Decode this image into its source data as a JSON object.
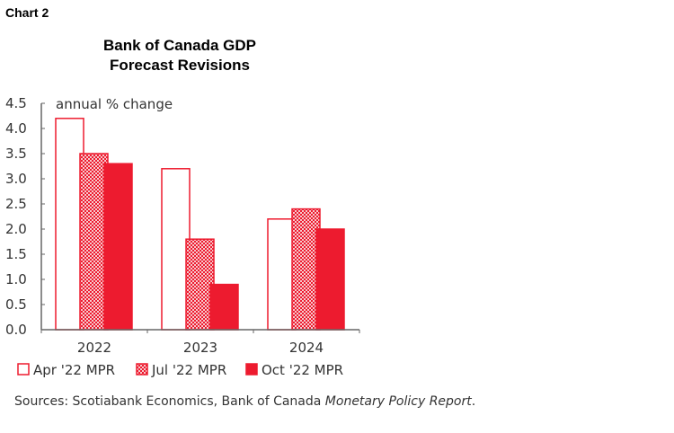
{
  "chart_label": "Chart 2",
  "chart_data": {
    "type": "bar",
    "title": "Bank of Canada GDP Forecast Revisions",
    "title_lines": [
      "Bank of Canada GDP",
      "Forecast Revisions"
    ],
    "ylabel": "annual % change",
    "ylim": [
      0,
      4.5
    ],
    "yticks": [
      "0.0",
      "0.5",
      "1.0",
      "1.5",
      "2.0",
      "2.5",
      "3.0",
      "3.5",
      "4.0",
      "4.5"
    ],
    "categories": [
      "2022",
      "2023",
      "2024"
    ],
    "series": [
      {
        "name": "Apr '22 MPR",
        "values": [
          4.2,
          3.2,
          2.2
        ],
        "style": "outline"
      },
      {
        "name": "Jul '22 MPR",
        "values": [
          3.5,
          1.8,
          2.4
        ],
        "style": "hatched"
      },
      {
        "name": "Oct '22 MPR",
        "values": [
          3.3,
          0.9,
          2.0
        ],
        "style": "solid"
      }
    ],
    "legend": "bottom",
    "grid": false,
    "color": "#ed1b2f"
  },
  "source": {
    "prefix": "Sources: Scotiabank Economics, Bank of Canada ",
    "italic": "Monetary Policy Report",
    "suffix": "."
  }
}
